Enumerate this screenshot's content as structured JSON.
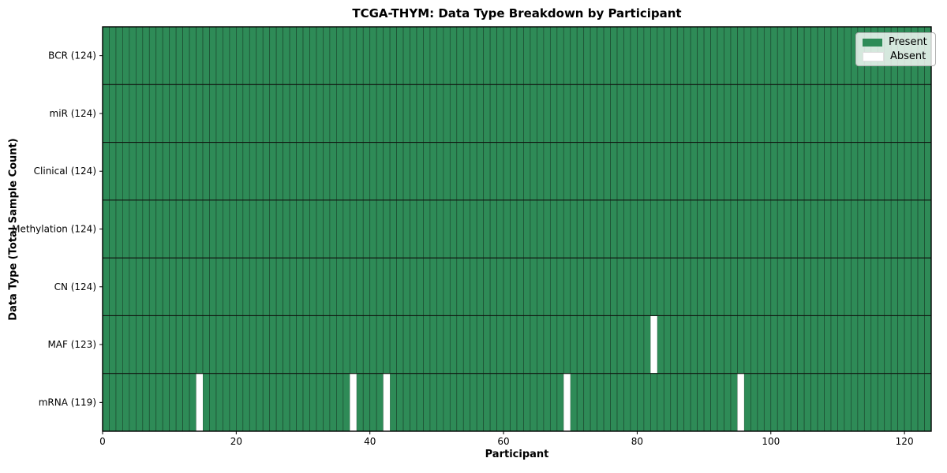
{
  "figure": {
    "title": "TCGA-THYM: Data Type Breakdown by Participant",
    "xlabel": "Participant",
    "ylabel": "Data Type (Total Sample Count)"
  },
  "legend": {
    "items": [
      {
        "label": "Present",
        "color": "#2e8b57"
      },
      {
        "label": "Absent",
        "color": "#ffffff"
      }
    ]
  },
  "chart_data": {
    "type": "heatmap",
    "title": "TCGA-THYM: Data Type Breakdown by Participant",
    "xlabel": "Participant",
    "ylabel": "Data Type (Total Sample Count)",
    "n_participants": 124,
    "xlim": [
      0,
      124
    ],
    "x_ticks": [
      0,
      20,
      40,
      60,
      80,
      100,
      120
    ],
    "legend": [
      "Present",
      "Absent"
    ],
    "legend_position": "upper right",
    "grid": false,
    "colors": {
      "present": "#2e8b57",
      "absent": "#ffffff",
      "cell_edge": "#1c4a30",
      "row_separator": "#101510",
      "axis_border": "#000000"
    },
    "rows": [
      {
        "label": "BCR (124)",
        "data_type": "BCR",
        "sample_count": 124,
        "absent_participant_indices": []
      },
      {
        "label": "miR (124)",
        "data_type": "miR",
        "sample_count": 124,
        "absent_participant_indices": []
      },
      {
        "label": "Clinical (124)",
        "data_type": "Clinical",
        "sample_count": 124,
        "absent_participant_indices": []
      },
      {
        "label": "Methylation (124)",
        "data_type": "Methylation",
        "sample_count": 124,
        "absent_participant_indices": []
      },
      {
        "label": "CN (124)",
        "data_type": "CN",
        "sample_count": 124,
        "absent_participant_indices": []
      },
      {
        "label": "MAF (123)",
        "data_type": "MAF",
        "sample_count": 123,
        "absent_participant_indices": [
          82
        ]
      },
      {
        "label": "mRNA (119)",
        "data_type": "mRNA",
        "sample_count": 119,
        "absent_participant_indices": [
          14,
          37,
          42,
          69,
          95
        ]
      }
    ]
  }
}
